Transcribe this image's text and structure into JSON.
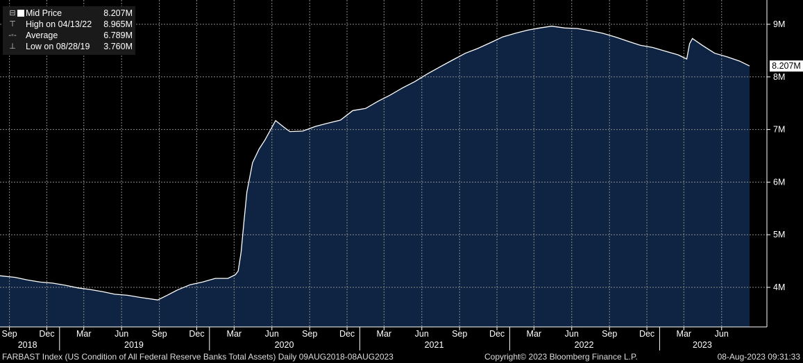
{
  "legend": {
    "rows": [
      {
        "symbol": "⊟",
        "label": "Mid Price",
        "value": "8.207M"
      },
      {
        "symbol": "⊤",
        "label": "High on 04/13/22",
        "value": "8.965M"
      },
      {
        "symbol": "-◦-",
        "label": "Average",
        "value": "6.789M"
      },
      {
        "symbol": "⊥",
        "label": "Low on 08/28/19",
        "value": "3.760M"
      }
    ]
  },
  "footer": {
    "left": "FARBAST Index (US Condition of All Federal Reserve Banks Total Assets)  Daily 09AUG2018-08AUG2023",
    "center": "Copyright© 2023 Bloomberg Finance L.P.",
    "right": "08-Aug-2023 09:31:33"
  },
  "colors": {
    "area": "#0e2442",
    "line": "#ffffff",
    "grid": "#8a8a8a",
    "legend_bg": "#1a1a1a"
  },
  "chart_data": {
    "type": "area",
    "title": "",
    "xlabel": "",
    "ylabel": "",
    "ylim": [
      3.3,
      9.3
    ],
    "x_range": [
      "2018-08-09",
      "2023-08-08"
    ],
    "grid": true,
    "y_ticks": [
      "4M",
      "5M",
      "6M",
      "7M",
      "8M",
      "9M"
    ],
    "y_tick_values": [
      4,
      5,
      6,
      7,
      8,
      9
    ],
    "last_value_label": "8.207M",
    "x_month_ticks": [
      {
        "label": "Sep",
        "date": "2018-09-01"
      },
      {
        "label": "Dec",
        "date": "2018-12-01"
      },
      {
        "label": "Mar",
        "date": "2019-03-01"
      },
      {
        "label": "Jun",
        "date": "2019-06-01"
      },
      {
        "label": "Sep",
        "date": "2019-09-01"
      },
      {
        "label": "Dec",
        "date": "2019-12-01"
      },
      {
        "label": "Mar",
        "date": "2020-03-01"
      },
      {
        "label": "Jun",
        "date": "2020-06-01"
      },
      {
        "label": "Sep",
        "date": "2020-09-01"
      },
      {
        "label": "Dec",
        "date": "2020-12-01"
      },
      {
        "label": "Mar",
        "date": "2021-03-01"
      },
      {
        "label": "Jun",
        "date": "2021-06-01"
      },
      {
        "label": "Sep",
        "date": "2021-09-01"
      },
      {
        "label": "Dec",
        "date": "2021-12-01"
      },
      {
        "label": "Mar",
        "date": "2022-03-01"
      },
      {
        "label": "Jun",
        "date": "2022-06-01"
      },
      {
        "label": "Sep",
        "date": "2022-09-01"
      },
      {
        "label": "Dec",
        "date": "2022-12-01"
      },
      {
        "label": "Mar",
        "date": "2023-03-01"
      },
      {
        "label": "Jun",
        "date": "2023-06-01"
      }
    ],
    "x_year_labels": [
      {
        "label": "2018",
        "date": "2018-10-15"
      },
      {
        "label": "2019",
        "date": "2019-07-01"
      },
      {
        "label": "2020",
        "date": "2020-07-01"
      },
      {
        "label": "2021",
        "date": "2021-07-01"
      },
      {
        "label": "2022",
        "date": "2022-07-01"
      },
      {
        "label": "2023",
        "date": "2023-04-15"
      }
    ],
    "year_boundaries": [
      "2019-01-01",
      "2020-01-01",
      "2021-01-01",
      "2022-01-01",
      "2023-01-01"
    ],
    "series": [
      {
        "points": [
          [
            "2018-08-09",
            4.22
          ],
          [
            "2018-09-15",
            4.19
          ],
          [
            "2018-10-15",
            4.14
          ],
          [
            "2018-11-15",
            4.1
          ],
          [
            "2018-12-15",
            4.08
          ],
          [
            "2019-01-15",
            4.04
          ],
          [
            "2019-02-15",
            3.99
          ],
          [
            "2019-03-15",
            3.96
          ],
          [
            "2019-04-15",
            3.92
          ],
          [
            "2019-05-15",
            3.87
          ],
          [
            "2019-06-15",
            3.85
          ],
          [
            "2019-07-15",
            3.81
          ],
          [
            "2019-08-28",
            3.76
          ],
          [
            "2019-09-20",
            3.85
          ],
          [
            "2019-10-15",
            3.95
          ],
          [
            "2019-11-15",
            4.05
          ],
          [
            "2019-12-15",
            4.1
          ],
          [
            "2020-01-15",
            4.17
          ],
          [
            "2020-02-15",
            4.17
          ],
          [
            "2020-03-04",
            4.24
          ],
          [
            "2020-03-11",
            4.31
          ],
          [
            "2020-03-18",
            4.67
          ],
          [
            "2020-03-25",
            5.25
          ],
          [
            "2020-04-01",
            5.81
          ],
          [
            "2020-04-15",
            6.37
          ],
          [
            "2020-05-01",
            6.63
          ],
          [
            "2020-05-15",
            6.8
          ],
          [
            "2020-06-10",
            7.17
          ],
          [
            "2020-07-01",
            7.04
          ],
          [
            "2020-07-15",
            6.96
          ],
          [
            "2020-08-15",
            6.97
          ],
          [
            "2020-09-15",
            7.06
          ],
          [
            "2020-10-15",
            7.12
          ],
          [
            "2020-11-15",
            7.18
          ],
          [
            "2020-12-15",
            7.36
          ],
          [
            "2021-01-15",
            7.4
          ],
          [
            "2021-02-15",
            7.54
          ],
          [
            "2021-03-15",
            7.65
          ],
          [
            "2021-04-15",
            7.79
          ],
          [
            "2021-05-15",
            7.91
          ],
          [
            "2021-06-15",
            8.06
          ],
          [
            "2021-07-15",
            8.19
          ],
          [
            "2021-08-15",
            8.32
          ],
          [
            "2021-09-15",
            8.45
          ],
          [
            "2021-10-15",
            8.54
          ],
          [
            "2021-11-15",
            8.65
          ],
          [
            "2021-12-15",
            8.76
          ],
          [
            "2022-01-15",
            8.83
          ],
          [
            "2022-02-15",
            8.89
          ],
          [
            "2022-03-15",
            8.93
          ],
          [
            "2022-04-13",
            8.965
          ],
          [
            "2022-05-15",
            8.93
          ],
          [
            "2022-06-15",
            8.92
          ],
          [
            "2022-07-15",
            8.88
          ],
          [
            "2022-08-15",
            8.83
          ],
          [
            "2022-09-15",
            8.76
          ],
          [
            "2022-10-15",
            8.68
          ],
          [
            "2022-11-15",
            8.6
          ],
          [
            "2022-12-15",
            8.56
          ],
          [
            "2023-01-15",
            8.49
          ],
          [
            "2023-02-15",
            8.42
          ],
          [
            "2023-03-08",
            8.34
          ],
          [
            "2023-03-15",
            8.63
          ],
          [
            "2023-03-22",
            8.73
          ],
          [
            "2023-04-15",
            8.6
          ],
          [
            "2023-05-15",
            8.45
          ],
          [
            "2023-06-15",
            8.38
          ],
          [
            "2023-07-15",
            8.3
          ],
          [
            "2023-08-08",
            8.207
          ]
        ]
      }
    ]
  }
}
